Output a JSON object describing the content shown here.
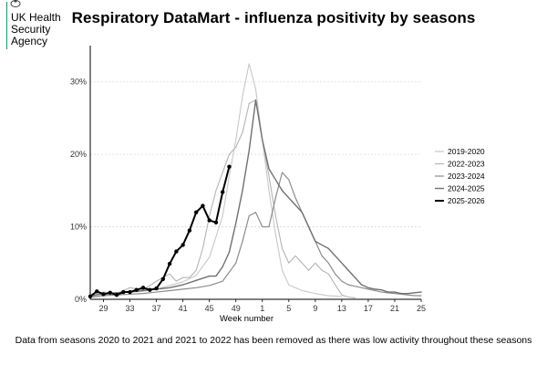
{
  "org": {
    "line1": "UK Health",
    "line2": "Security",
    "line3": "Agency",
    "accent": "#1d8d7a"
  },
  "chart_data": {
    "type": "line",
    "title": "Respiratory DataMart - influenza positivity by seasons",
    "xlabel": "Week number",
    "ylabel": "",
    "ylim": [
      0,
      35
    ],
    "yticks": [
      "0%",
      "10%",
      "20%",
      "30%"
    ],
    "ytick_values": [
      0,
      10,
      20,
      30
    ],
    "xtick_labels": [
      "29",
      "33",
      "37",
      "41",
      "45",
      "49",
      "1",
      "5",
      "9",
      "13",
      "17",
      "21",
      "25"
    ],
    "xtick_positions": [
      2,
      6,
      10,
      14,
      18,
      22,
      26,
      30,
      34,
      38,
      42,
      46,
      50
    ],
    "x_note": "x is week index: 0 = week 27, 24 = week 51, 25 = week 52, 26 = week 1, 50 = week 25",
    "legend": [
      "2019-2020",
      "2022-2023",
      "2023-2024",
      "2024-2025",
      "2025-2026"
    ],
    "series": [
      {
        "name": "2019-2020",
        "color": "#c8c8c8",
        "width": 1.1,
        "markers": false,
        "x": [
          0,
          2,
          4,
          6,
          8,
          10,
          12,
          14,
          16,
          18,
          20,
          21,
          22,
          23,
          24,
          25,
          26,
          27,
          28,
          29,
          30,
          32,
          34,
          36,
          38
        ],
        "values": [
          0.3,
          0.6,
          0.9,
          1.0,
          1.1,
          1.4,
          1.9,
          2.4,
          3.3,
          5.8,
          11.5,
          17,
          22,
          28,
          32.5,
          29,
          22,
          15,
          9,
          4,
          2,
          1.2,
          0.8,
          0.5,
          0.4
        ]
      },
      {
        "name": "2022-2023",
        "color": "#b4b4b4",
        "width": 1.1,
        "markers": false,
        "x": [
          0,
          2,
          4,
          6,
          8,
          10,
          12,
          13,
          14,
          15,
          16,
          17,
          18,
          19,
          20,
          21,
          22,
          23,
          24,
          25,
          26,
          27,
          28,
          29,
          30,
          31,
          32,
          33,
          34,
          35,
          36,
          37,
          38,
          39,
          40
        ],
        "values": [
          0.3,
          1.0,
          0.8,
          1.6,
          1.3,
          2.5,
          3.5,
          2.5,
          3.0,
          3.0,
          4.0,
          7.0,
          11.5,
          15.0,
          17.5,
          20.0,
          21.0,
          23.0,
          27.0,
          27.5,
          22.0,
          17.0,
          11.5,
          7.0,
          5.0,
          6.0,
          5.0,
          4.0,
          5.0,
          4.0,
          3.5,
          2.0,
          0.6,
          0.3,
          0.2
        ]
      },
      {
        "name": "2023-2024",
        "color": "#8c8c8c",
        "width": 1.2,
        "markers": false,
        "x": [
          0,
          2,
          4,
          6,
          8,
          10,
          12,
          14,
          16,
          18,
          20,
          22,
          23,
          24,
          25,
          26,
          27,
          28,
          29,
          30,
          31,
          32,
          33,
          34,
          35,
          36,
          37,
          38,
          39,
          40,
          41,
          42,
          43,
          44,
          45,
          46,
          47,
          48,
          49,
          50
        ],
        "values": [
          0.3,
          0.5,
          0.6,
          0.7,
          0.8,
          1.0,
          1.2,
          1.4,
          1.6,
          1.9,
          2.5,
          5.0,
          8.0,
          11.5,
          12.0,
          10.0,
          10.0,
          14.0,
          17.5,
          16.5,
          14.0,
          12.0,
          10.0,
          8.0,
          6.0,
          5.0,
          3.5,
          2.5,
          2.0,
          1.8,
          1.6,
          1.4,
          1.2,
          1.0,
          0.9,
          0.8,
          0.7,
          0.6,
          0.5,
          0.5
        ]
      },
      {
        "name": "2024-2025",
        "color": "#707070",
        "width": 1.4,
        "markers": false,
        "x": [
          0,
          2,
          4,
          6,
          8,
          10,
          12,
          14,
          16,
          18,
          19,
          20,
          21,
          22,
          23,
          24,
          25,
          26,
          27,
          28,
          29,
          30,
          31,
          32,
          33,
          34,
          35,
          36,
          37,
          38,
          39,
          40,
          41,
          42,
          43,
          44,
          45,
          46,
          47,
          48,
          49,
          50
        ],
        "values": [
          0.5,
          0.8,
          0.9,
          1.0,
          1.2,
          1.4,
          1.6,
          2.0,
          2.6,
          3.2,
          3.2,
          4.5,
          6.5,
          10.5,
          15.0,
          20.5,
          27.5,
          22.0,
          18.0,
          16.5,
          15.0,
          14.0,
          13.0,
          12.0,
          10.0,
          8.0,
          7.5,
          7.0,
          6.0,
          5.0,
          4.0,
          3.0,
          2.0,
          1.6,
          1.4,
          1.3,
          1.0,
          1.0,
          0.8,
          0.8,
          0.9,
          1.0
        ]
      },
      {
        "name": "2025-2026",
        "color": "#000000",
        "width": 2.0,
        "markers": true,
        "x": [
          0,
          1,
          2,
          3,
          4,
          5,
          6,
          7,
          8,
          9,
          10,
          11,
          12,
          13,
          14,
          15,
          16,
          17,
          18,
          19,
          20,
          21,
          22
        ],
        "values": [
          0.4,
          1.1,
          0.7,
          0.9,
          0.6,
          1.0,
          1.0,
          1.3,
          1.6,
          1.3,
          1.5,
          2.8,
          4.9,
          6.6,
          7.5,
          9.5,
          12.0,
          12.9,
          10.9,
          10.6,
          14.8,
          18.3,
          null
        ]
      }
    ]
  },
  "footer": "Data from seasons 2020 to 2021 and 2021 to 2022 has been removed as there was low activity throughout these seasons"
}
